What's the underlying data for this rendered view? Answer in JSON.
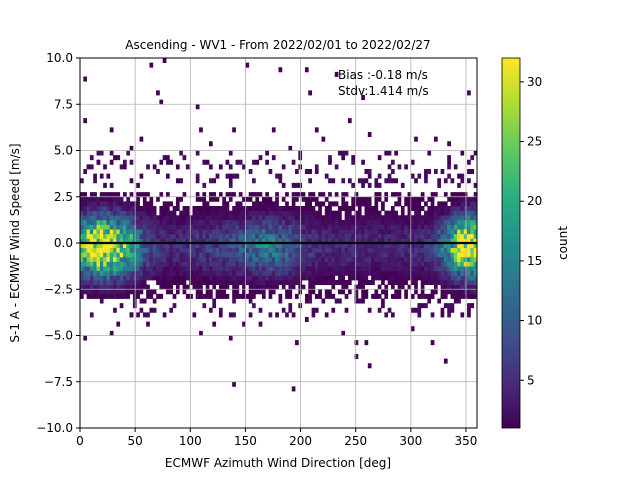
{
  "chart_data": {
    "type": "heatmap",
    "title": "Ascending - WV1 - From 2022/02/01 to 2022/02/27",
    "xlabel": "ECMWF Azimuth Wind Direction [deg]",
    "ylabel": "S-1 A - ECMWF Wind Speed [m/s]",
    "xlim": [
      0,
      360
    ],
    "ylim": [
      -10,
      10
    ],
    "x_ticks": [
      0,
      50,
      100,
      150,
      200,
      250,
      300,
      350
    ],
    "y_ticks": [
      -10.0,
      -7.5,
      -5.0,
      -2.5,
      0.0,
      2.5,
      5.0,
      7.5,
      10.0
    ],
    "y_tick_labels": [
      "−10.0",
      "−7.5",
      "−5.0",
      "−2.5",
      "0.0",
      "2.5",
      "5.0",
      "7.5",
      "10.0"
    ],
    "grid": true,
    "colormap": "viridis",
    "colorbar": {
      "label": "count",
      "min": 1,
      "max": 32,
      "ticks": [
        5,
        10,
        15,
        20,
        25,
        30
      ]
    },
    "bin_size": {
      "x": 3,
      "y": 0.25
    },
    "zero_line": 0.0,
    "annotation": {
      "line1": "Bias :-0.18 m/s",
      "line2": "Stdv:1.414 m/s"
    },
    "colors": {
      "zero_line": "#000000",
      "grid": "#b0b0b0"
    },
    "density_model": {
      "core_sigma_y": 1.05,
      "peak_count_edges": 31,
      "mid_count": 12
    },
    "outliers": [
      [
        5,
        8.9
      ],
      [
        5,
        6.6
      ],
      [
        65,
        9.6
      ],
      [
        70,
        8.1
      ],
      [
        72,
        7.6
      ],
      [
        76,
        9.8
      ],
      [
        107,
        7.3
      ],
      [
        150,
        9.7
      ],
      [
        180,
        9.3
      ],
      [
        205,
        9.3
      ],
      [
        208,
        8.2
      ],
      [
        232,
        9.2
      ],
      [
        255,
        7.9
      ],
      [
        352,
        8.0
      ],
      [
        28,
        6.1
      ],
      [
        45,
        5.2
      ],
      [
        54,
        5.7
      ],
      [
        110,
        6.0
      ],
      [
        119,
        5.3
      ],
      [
        140,
        6.2
      ],
      [
        175,
        6.2
      ],
      [
        190,
        5.1
      ],
      [
        214,
        6.0
      ],
      [
        220,
        5.7
      ],
      [
        245,
        6.5
      ],
      [
        262,
        5.9
      ],
      [
        278,
        4.8
      ],
      [
        303,
        5.7
      ],
      [
        322,
        5.7
      ],
      [
        335,
        5.3
      ],
      [
        345,
        4.9
      ],
      [
        15,
        4.4
      ],
      [
        30,
        4.6
      ],
      [
        40,
        4.0
      ],
      [
        5,
        -5.1
      ],
      [
        28,
        -4.9
      ],
      [
        35,
        -4.3
      ],
      [
        46,
        -3.8
      ],
      [
        60,
        -4.3
      ],
      [
        75,
        -3.9
      ],
      [
        103,
        -3.8
      ],
      [
        110,
        -4.8
      ],
      [
        120,
        -4.4
      ],
      [
        126,
        -3.9
      ],
      [
        135,
        -5.1
      ],
      [
        138,
        -7.6
      ],
      [
        148,
        -4.3
      ],
      [
        163,
        -4.5
      ],
      [
        178,
        -3.9
      ],
      [
        193,
        -7.9
      ],
      [
        196,
        -5.4
      ],
      [
        205,
        -4.1
      ],
      [
        222,
        -3.8
      ],
      [
        238,
        -4.8
      ],
      [
        249,
        -5.5
      ],
      [
        250,
        -6.1
      ],
      [
        260,
        -5.4
      ],
      [
        262,
        -6.7
      ],
      [
        283,
        -3.8
      ],
      [
        300,
        -4.6
      ],
      [
        318,
        -5.4
      ],
      [
        328,
        -3.8
      ],
      [
        332,
        -6.5
      ],
      [
        345,
        -4.0
      ],
      [
        352,
        -3.9
      ],
      [
        355,
        -3.3
      ]
    ]
  }
}
